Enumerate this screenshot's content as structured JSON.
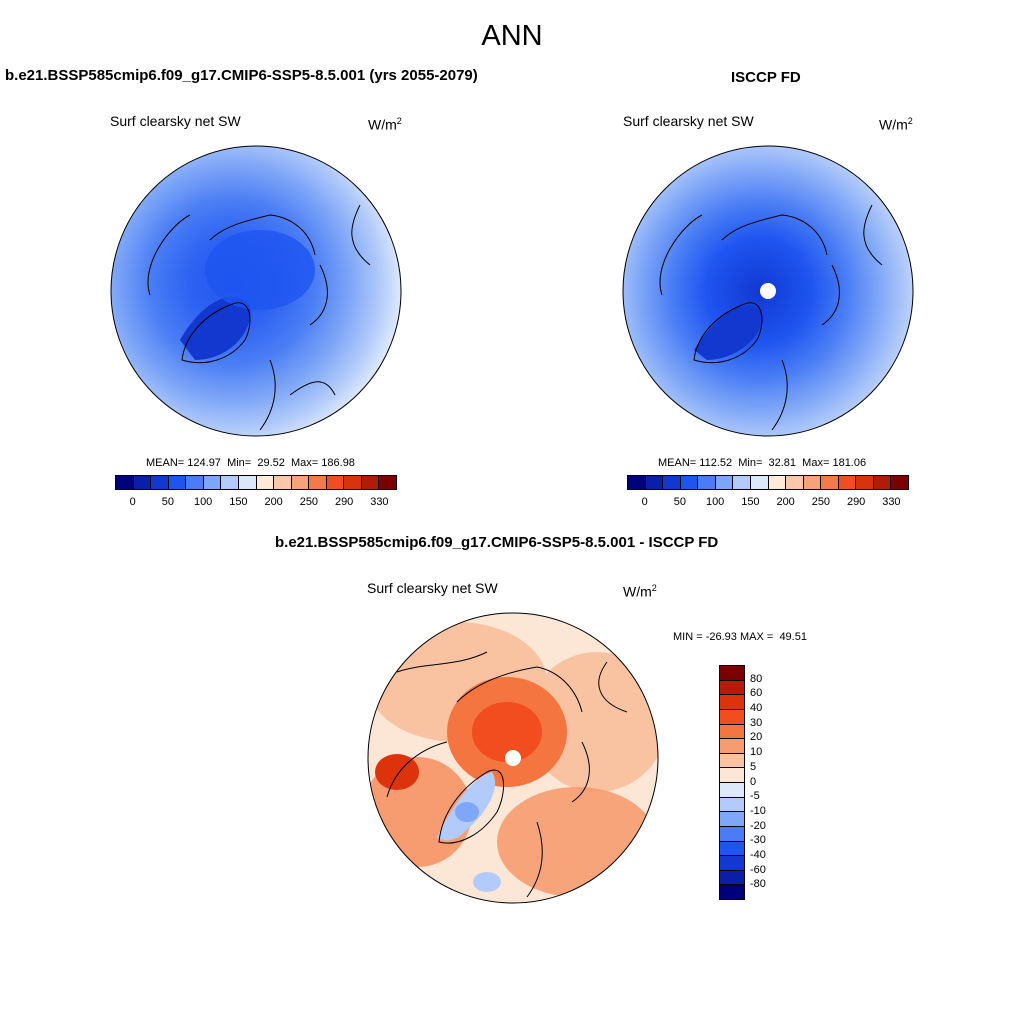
{
  "title": "ANN",
  "panels": {
    "model": {
      "title": "b.e21.BSSP585cmip6.f09_g17.CMIP6-SSP5-8.5.001 (yrs 2055-2079)",
      "variable": "Surf clearsky net SW",
      "units_base": "W/m",
      "units_exp": "2",
      "stats": {
        "mean_label": "MEAN=",
        "mean": "124.97",
        "min_label": "Min=",
        "min": "29.52",
        "max_label": "Max=",
        "max": "186.98"
      }
    },
    "obs": {
      "title": "ISCCP FD",
      "variable": "Surf clearsky net SW",
      "units_base": "W/m",
      "units_exp": "2",
      "stats": {
        "mean_label": "MEAN=",
        "mean": "112.52",
        "min_label": "Min=",
        "min": "32.81",
        "max_label": "Max=",
        "max": "181.06"
      }
    },
    "diff": {
      "title": "b.e21.BSSP585cmip6.f09_g17.CMIP6-SSP5-8.5.001 - ISCCP FD",
      "variable": "Surf clearsky net SW",
      "units_base": "W/m",
      "units_exp": "2",
      "stats": {
        "min_label": "MIN =",
        "min": "-26.93",
        "max_label": "MAX =",
        "max": "49.51"
      }
    }
  },
  "colorbar_abs": {
    "colors": [
      "#00007a",
      "#0a1fa8",
      "#1238d0",
      "#1e55f0",
      "#4a7df5",
      "#7ea6f7",
      "#b3cbfa",
      "#dbe8fc",
      "#fdeadb",
      "#fbc7a8",
      "#f8a27a",
      "#f47a4a",
      "#ef4f20",
      "#d8320e",
      "#b01c08",
      "#7d0000"
    ],
    "ticks": [
      "0",
      "50",
      "100",
      "150",
      "200",
      "250",
      "290",
      "330"
    ]
  },
  "colorbar_diff": {
    "colors": [
      "#7d0000",
      "#b51c06",
      "#dc330d",
      "#f24d1e",
      "#f4753f",
      "#f79c70",
      "#f9c3a2",
      "#fce6d5",
      "#dce9fc",
      "#b3cbfa",
      "#80a6f7",
      "#4a7df5",
      "#1e55f0",
      "#1238d0",
      "#0a1fa8",
      "#00007a"
    ],
    "ticks": [
      "80",
      "60",
      "40",
      "30",
      "20",
      "10",
      "5",
      "0",
      "-5",
      "-10",
      "-20",
      "-30",
      "-40",
      "-60",
      "-80"
    ]
  }
}
